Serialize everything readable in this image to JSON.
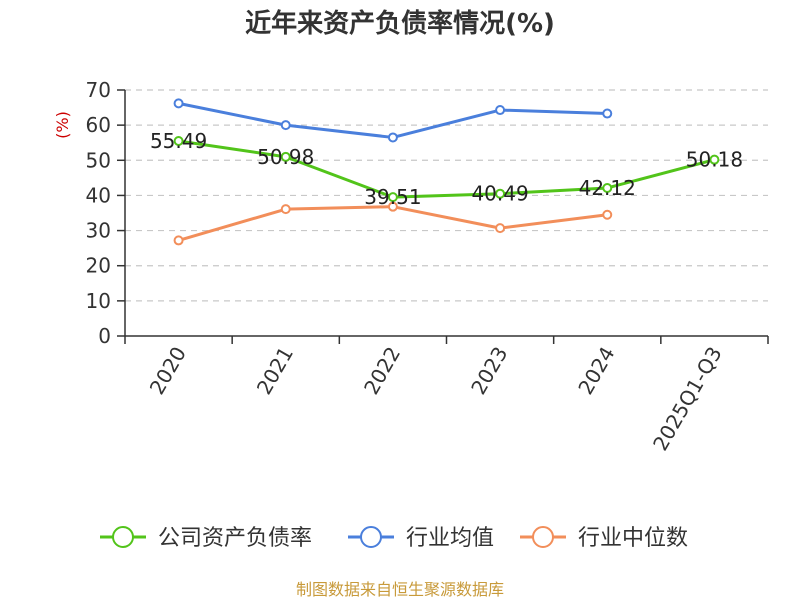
{
  "chart_data": {
    "type": "line",
    "title": "近年来资产负债率情况(%)",
    "ylabel": "(%)",
    "ylim": [
      0,
      70
    ],
    "yticks": [
      0,
      10,
      20,
      30,
      40,
      50,
      60,
      70
    ],
    "categories": [
      "2020",
      "2021",
      "2022",
      "2023",
      "2024",
      "2025Q1-Q3"
    ],
    "grid": true,
    "legend_position": "bottom",
    "series": [
      {
        "name": "公司资产负债率",
        "color": "#52c41a",
        "values": [
          55.49,
          50.98,
          39.51,
          40.49,
          42.12,
          50.18
        ],
        "labels": [
          "55.49",
          "50.98",
          "39.51",
          "40.49",
          "42.12",
          "50.18"
        ]
      },
      {
        "name": "行业均值",
        "color": "#4a7fdc",
        "values": [
          66.2,
          60.0,
          56.5,
          64.3,
          63.3,
          null
        ]
      },
      {
        "name": "行业中位数",
        "color": "#f28e5a",
        "values": [
          27.2,
          36.1,
          36.8,
          30.7,
          34.5,
          null
        ]
      }
    ],
    "source": "制图数据来自恒生聚源数据库",
    "label_color": "#cc0000",
    "source_color": "#c89a3a"
  }
}
